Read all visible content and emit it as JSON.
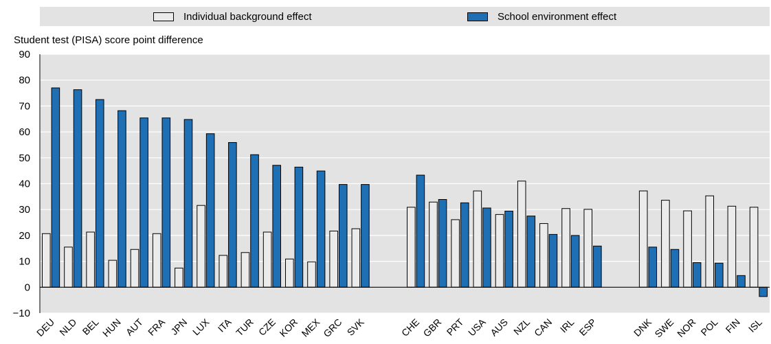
{
  "legend": {
    "items": [
      {
        "label": "Individual background effect",
        "color": "#ebebeb"
      },
      {
        "label": "School environment effect",
        "color": "#1f6fb5"
      }
    ]
  },
  "chart_data": {
    "type": "bar",
    "ylabel": "Student test (PISA) score point difference",
    "ylim": [
      -10,
      90
    ],
    "yticks": [
      -10,
      0,
      10,
      20,
      30,
      40,
      50,
      60,
      70,
      80,
      90
    ],
    "grid": true,
    "legend_position": "top",
    "groups": [
      [
        "DEU",
        "NLD",
        "BEL",
        "HUN",
        "AUT",
        "FRA",
        "JPN",
        "LUX",
        "ITA",
        "TUR",
        "CZE",
        "KOR",
        "MEX",
        "GRC",
        "SVK"
      ],
      [
        "CHE",
        "GBR",
        "PRT",
        "USA",
        "AUS",
        "NZL",
        "CAN",
        "IRL",
        "ESP"
      ],
      [
        "DNK",
        "SWE",
        "NOR",
        "POL",
        "FIN",
        "ISL"
      ]
    ],
    "categories": [
      "DEU",
      "NLD",
      "BEL",
      "HUN",
      "AUT",
      "FRA",
      "JPN",
      "LUX",
      "ITA",
      "TUR",
      "CZE",
      "KOR",
      "MEX",
      "GRC",
      "SVK",
      "CHE",
      "GBR",
      "PRT",
      "USA",
      "AUS",
      "NZL",
      "CAN",
      "IRL",
      "ESP",
      "DNK",
      "SWE",
      "NOR",
      "POL",
      "FIN",
      "ISL"
    ],
    "series": [
      {
        "name": "Individual background effect",
        "color": "#ebebeb",
        "values": [
          20.7,
          15.5,
          21.3,
          10.4,
          14.6,
          20.7,
          7.4,
          31.6,
          12.3,
          13.4,
          21.3,
          10.9,
          9.8,
          21.7,
          22.6,
          30.9,
          32.9,
          26.1,
          37.2,
          28.1,
          41.0,
          24.6,
          30.4,
          30.1,
          37.2,
          33.6,
          29.5,
          35.3,
          31.3,
          30.9
        ]
      },
      {
        "name": "School environment effect",
        "color": "#1f6fb5",
        "values": [
          77.0,
          76.3,
          72.5,
          68.2,
          65.4,
          65.4,
          64.8,
          59.3,
          55.9,
          51.2,
          47.1,
          46.4,
          44.9,
          39.7,
          39.7,
          43.3,
          33.9,
          32.6,
          30.6,
          29.4,
          27.5,
          20.4,
          20.0,
          15.9,
          15.5,
          14.6,
          9.5,
          9.3,
          4.5,
          -3.6
        ]
      }
    ]
  }
}
